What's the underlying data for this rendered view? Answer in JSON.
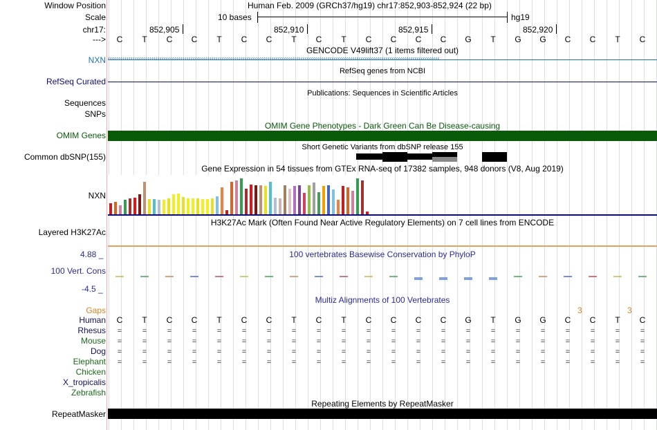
{
  "colors": {
    "gencode_blue": "#1a73c0",
    "refseq_navy": "#0c0c78",
    "omim_green": "#0a5a0a",
    "gtex_bars": [
      "#c02020",
      "#e06020",
      "#d080a0",
      "#30a050",
      "#a03030",
      "#e81010",
      "#7a1818",
      "#c09070",
      "#e8e020",
      "#50c0d0",
      "#b0c0d0",
      "#d0b0b0",
      "#a08060",
      "#e0c0c0",
      "#b070c0",
      "#8040a0",
      "#d04060",
      "#90c040",
      "#a0a0a0",
      "#40a060",
      "#f0a000",
      "#4060e0",
      "#80c0e0",
      "#f08040"
    ],
    "h3k27ac_line": "#e8a060",
    "phylop_blue": "#2a2a9a",
    "gaps_orange": "#e08020",
    "species_navy": "#101060",
    "species_green": "#1a6a1a",
    "repeat_black": "#000000"
  },
  "header": {
    "window_position_label": "Window Position",
    "window_position_value": "Human Feb. 2009 (GRCh37/hg19)   chr17:852,903-852,924 (22 bp)",
    "scale_label": "Scale",
    "scale_value": "10 bases",
    "scale_assembly": "hg19",
    "chrom_label": "chr17:",
    "coord_ticks": [
      "852,905",
      "852,910",
      "852,915",
      "852,920"
    ],
    "strand_label": "--->"
  },
  "sequence": [
    "C",
    "T",
    "C",
    "C",
    "T",
    "C",
    "C",
    "T",
    "C",
    "T",
    "C",
    "C",
    "C",
    "C",
    "G",
    "T",
    "G",
    "G",
    "C",
    "C",
    "T",
    "C"
  ],
  "tracks": {
    "gencode": {
      "title": "GENCODE V49lift37 (1 items filtered out)",
      "label": "NXN"
    },
    "refseq": {
      "title": "RefSeq genes from NCBI",
      "label": "RefSeq Curated"
    },
    "publications": {
      "title": "Publications: Sequences in Scientific Articles",
      "label_line1": "Sequences",
      "label_line2": "SNPs"
    },
    "omim": {
      "title": "OMIM Gene Phenotypes - Dark Green Can Be Disease-causing",
      "label": "OMIM Genes"
    },
    "dbsnp": {
      "title": "Short Genetic Variants from dbSNP release 155",
      "label": "Common dbSNP(155)"
    },
    "gtex": {
      "title": "Gene Expression in 54 tissues from GTEx RNA-seq of 17382 samples, 948 donors (V8, Aug 2019)",
      "label": "NXN"
    },
    "h3k27ac": {
      "title": "H3K27Ac Mark (Often Found Near Active Regulatory Elements) on 7 cell lines from ENCODE",
      "label": "Layered H3K27Ac"
    },
    "phylop": {
      "title": "100 vertebrates Basewise Conservation by PhyloP",
      "label": "100 Vert. Cons",
      "max": "4.88 _",
      "min": "-4.5 _"
    },
    "multiz": {
      "title": "Multiz Alignments of 100 Vertebrates",
      "gaps_label": "Gaps",
      "gap_marks": [
        "3",
        "3"
      ],
      "equal_sign": "="
    },
    "repeatmasker": {
      "title": "Repeating Elements by RepeatMasker",
      "label": "RepeatMasker"
    }
  },
  "species": [
    {
      "name": "Human",
      "color": "navy"
    },
    {
      "name": "Rhesus",
      "color": "navy"
    },
    {
      "name": "Mouse",
      "color": "green"
    },
    {
      "name": "Dog",
      "color": "navy"
    },
    {
      "name": "Elephant",
      "color": "green"
    },
    {
      "name": "Chicken",
      "color": "green"
    },
    {
      "name": "X_tropicalis",
      "color": "navy"
    },
    {
      "name": "Zebrafish",
      "color": "green"
    }
  ],
  "gtex_levels": [
    0.3,
    0.35,
    0.25,
    0.4,
    0.45,
    0.46,
    0.55,
    0.9,
    0.42,
    0.42,
    0.4,
    0.4,
    0.45,
    0.55,
    0.58,
    0.48,
    0.45,
    0.45,
    0.45,
    0.42,
    0.42,
    0.45,
    0.5,
    0.75,
    0.12,
    0.9,
    0.95,
    1.0,
    0.72,
    0.82,
    0.8,
    0.8,
    0.78,
    0.9,
    0.46,
    0.44,
    0.8,
    0.72,
    0.78,
    0.8,
    0.6,
    0.8,
    0.88,
    0.62,
    0.78,
    0.8,
    0.7,
    0.4,
    0.78,
    0.75,
    0.65,
    1.0,
    0.95,
    0.08
  ]
}
